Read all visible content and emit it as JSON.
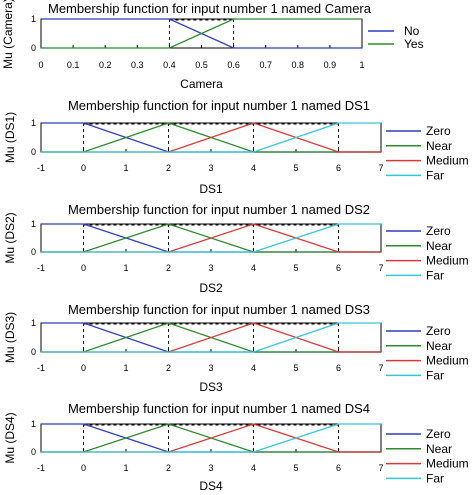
{
  "chart_data": [
    {
      "type": "line",
      "title": "Membership function for input number 1 named Camera",
      "xlabel": "Camera",
      "ylabel": "Mu (Camera)",
      "xlim": [
        0,
        1
      ],
      "ylim": [
        0,
        1
      ],
      "xticks": [
        "0",
        "0.1",
        "0.2",
        "0.3",
        "0.4",
        "0.5",
        "0.6",
        "0.7",
        "0.8",
        "0.9",
        "1"
      ],
      "yticks": [
        "0",
        "1"
      ],
      "legend_position": "right",
      "series": [
        {
          "name": "No",
          "color": "#2f3fbf",
          "x": [
            0,
            0.4,
            0.6,
            1
          ],
          "y": [
            1,
            1,
            0,
            0
          ]
        },
        {
          "name": "Yes",
          "color": "#2e8b2e",
          "x": [
            0,
            0.4,
            0.6,
            1
          ],
          "y": [
            0,
            0,
            1,
            1
          ]
        }
      ]
    },
    {
      "type": "line",
      "title": "Membership function for input number 1 named DS1",
      "xlabel": "DS1",
      "ylabel": "Mu (DS1)",
      "xlim": [
        -1,
        7
      ],
      "ylim": [
        0,
        1
      ],
      "xticks": [
        "-1",
        "0",
        "1",
        "2",
        "3",
        "4",
        "5",
        "6",
        "7"
      ],
      "yticks": [
        "0",
        "1"
      ],
      "legend_position": "right",
      "series": [
        {
          "name": "Zero",
          "color": "#2f3fbf",
          "x": [
            -1,
            0,
            2,
            7
          ],
          "y": [
            1,
            1,
            0,
            0
          ]
        },
        {
          "name": "Near",
          "color": "#2e8b2e",
          "x": [
            -1,
            0,
            2,
            4,
            7
          ],
          "y": [
            0,
            0,
            1,
            0,
            0
          ]
        },
        {
          "name": "Medium",
          "color": "#d93a3a",
          "x": [
            -1,
            2,
            4,
            6,
            7
          ],
          "y": [
            0,
            0,
            1,
            0,
            0
          ]
        },
        {
          "name": "Far",
          "color": "#35c8d8",
          "x": [
            -1,
            4,
            6,
            7
          ],
          "y": [
            0,
            0,
            1,
            1
          ]
        }
      ]
    },
    {
      "type": "line",
      "title": "Membership function for input number 1 named DS2",
      "xlabel": "DS2",
      "ylabel": "Mu (DS2)",
      "xlim": [
        -1,
        7
      ],
      "ylim": [
        0,
        1
      ],
      "xticks": [
        "-1",
        "0",
        "1",
        "2",
        "3",
        "4",
        "5",
        "6",
        "7"
      ],
      "yticks": [
        "0",
        "1"
      ],
      "legend_position": "right",
      "series": [
        {
          "name": "Zero",
          "color": "#2f3fbf",
          "x": [
            -1,
            0,
            2,
            7
          ],
          "y": [
            1,
            1,
            0,
            0
          ]
        },
        {
          "name": "Near",
          "color": "#2e8b2e",
          "x": [
            -1,
            0,
            2,
            4,
            7
          ],
          "y": [
            0,
            0,
            1,
            0,
            0
          ]
        },
        {
          "name": "Medium",
          "color": "#d93a3a",
          "x": [
            -1,
            2,
            4,
            6,
            7
          ],
          "y": [
            0,
            0,
            1,
            0,
            0
          ]
        },
        {
          "name": "Far",
          "color": "#35c8d8",
          "x": [
            -1,
            4,
            6,
            7
          ],
          "y": [
            0,
            0,
            1,
            1
          ]
        }
      ]
    },
    {
      "type": "line",
      "title": "Membership function for input number 1 named DS3",
      "xlabel": "DS3",
      "ylabel": "Mu (DS3)",
      "xlim": [
        -1,
        7
      ],
      "ylim": [
        0,
        1
      ],
      "xticks": [
        "-1",
        "0",
        "1",
        "2",
        "3",
        "4",
        "5",
        "6",
        "7"
      ],
      "yticks": [
        "0",
        "1"
      ],
      "legend_position": "right",
      "series": [
        {
          "name": "Zero",
          "color": "#2f3fbf",
          "x": [
            -1,
            0,
            2,
            7
          ],
          "y": [
            1,
            1,
            0,
            0
          ]
        },
        {
          "name": "Near",
          "color": "#2e8b2e",
          "x": [
            -1,
            0,
            2,
            4,
            7
          ],
          "y": [
            0,
            0,
            1,
            0,
            0
          ]
        },
        {
          "name": "Medium",
          "color": "#d93a3a",
          "x": [
            -1,
            2,
            4,
            6,
            7
          ],
          "y": [
            0,
            0,
            1,
            0,
            0
          ]
        },
        {
          "name": "Far",
          "color": "#35c8d8",
          "x": [
            -1,
            4,
            6,
            7
          ],
          "y": [
            0,
            0,
            1,
            1
          ]
        }
      ]
    },
    {
      "type": "line",
      "title": "Membership function for input number 1 named DS4",
      "xlabel": "DS4",
      "ylabel": "Mu (DS4)",
      "xlim": [
        -1,
        7
      ],
      "ylim": [
        0,
        1
      ],
      "xticks": [
        "-1",
        "0",
        "1",
        "2",
        "3",
        "4",
        "5",
        "6",
        "7"
      ],
      "yticks": [
        "0",
        "1"
      ],
      "legend_position": "right",
      "series": [
        {
          "name": "Zero",
          "color": "#2f3fbf",
          "x": [
            -1,
            0,
            2,
            7
          ],
          "y": [
            1,
            1,
            0,
            0
          ]
        },
        {
          "name": "Near",
          "color": "#2e8b2e",
          "x": [
            -1,
            0,
            2,
            4,
            7
          ],
          "y": [
            0,
            0,
            1,
            0,
            0
          ]
        },
        {
          "name": "Medium",
          "color": "#d93a3a",
          "x": [
            -1,
            2,
            4,
            6,
            7
          ],
          "y": [
            0,
            0,
            1,
            0,
            0
          ]
        },
        {
          "name": "Far",
          "color": "#35c8d8",
          "x": [
            -1,
            4,
            6,
            7
          ],
          "y": [
            0,
            0,
            1,
            1
          ]
        }
      ]
    }
  ]
}
